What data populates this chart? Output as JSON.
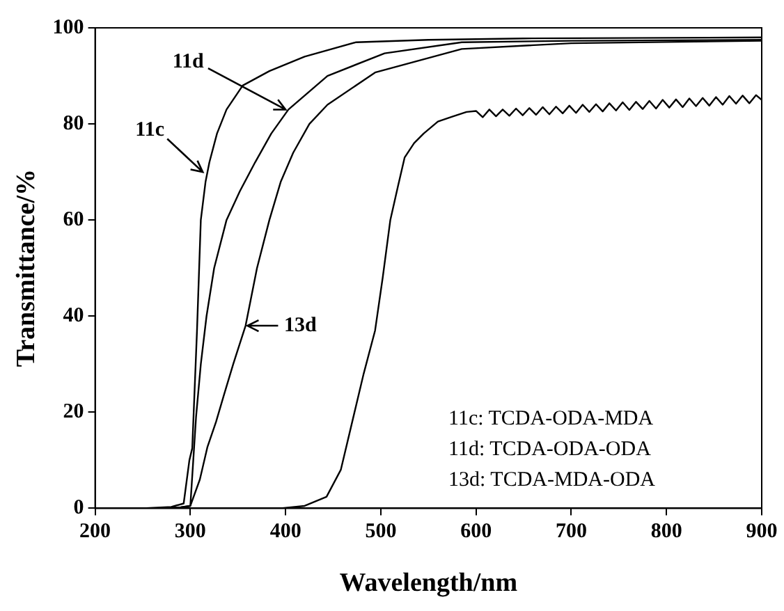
{
  "chart_data": {
    "type": "line",
    "xlabel": "Wavelength/nm",
    "ylabel": "Transmittance/%",
    "xlim": [
      200,
      900
    ],
    "ylim": [
      0,
      100
    ],
    "xticks": [
      200,
      300,
      400,
      500,
      600,
      700,
      800,
      900
    ],
    "yticks": [
      0,
      20,
      40,
      60,
      80,
      100
    ],
    "grid": false,
    "legend": false,
    "marker": "none",
    "line_style": "solid",
    "series": [
      {
        "color": "#000000",
        "x": [
          200,
          250,
          280,
          293,
          299,
          302,
          307,
          311,
          316,
          320,
          328,
          338,
          355,
          383,
          420,
          474,
          550,
          650,
          900
        ],
        "values": [
          0,
          0,
          0.3,
          1,
          10,
          12.5,
          37,
          60,
          68,
          72,
          78,
          83,
          88,
          91,
          94,
          97,
          97.5,
          97.8,
          98
        ]
      },
      {
        "color": "#000000",
        "x": [
          200,
          260,
          290,
          300,
          306,
          311,
          317,
          325,
          338,
          352,
          368,
          385,
          403,
          444,
          504,
          585,
          700,
          900
        ],
        "values": [
          0,
          0,
          0.2,
          0.5,
          19,
          30,
          40,
          50,
          60,
          66,
          72,
          78,
          83,
          90,
          94.7,
          97,
          97.3,
          97.5
        ]
      },
      {
        "color": "#000000",
        "x": [
          200,
          260,
          290,
          300,
          310,
          318,
          327,
          335,
          345,
          358,
          370,
          383,
          395,
          408,
          425,
          444,
          494,
          585,
          700,
          900
        ],
        "values": [
          0,
          0,
          0.2,
          0.5,
          6,
          12.8,
          18,
          23.4,
          30,
          38,
          50,
          60,
          68,
          74,
          80,
          84,
          90.7,
          95.6,
          96.8,
          97.3
        ]
      },
      {
        "color": "#000000",
        "x": [
          200,
          300,
          395,
          420,
          443,
          458,
          470,
          482,
          494,
          502,
          510,
          518,
          525,
          535,
          545,
          560,
          575,
          590,
          600,
          607,
          614,
          621,
          628,
          635,
          642,
          649,
          656,
          663,
          670,
          677,
          684,
          691,
          698,
          705,
          712,
          719,
          726,
          733,
          740,
          747,
          754,
          761,
          768,
          775,
          782,
          789,
          796,
          803,
          810,
          817,
          824,
          831,
          838,
          845,
          852,
          859,
          866,
          873,
          880,
          887,
          894,
          900
        ],
        "values": [
          0,
          0,
          0,
          0.5,
          2.4,
          8,
          18,
          28,
          37,
          48,
          60,
          67,
          73,
          76,
          78,
          80.5,
          81.5,
          82.5,
          82.7,
          81.4,
          83.0,
          81.6,
          83.0,
          81.7,
          83.2,
          81.8,
          83.3,
          81.9,
          83.5,
          82.0,
          83.6,
          82.2,
          83.8,
          82.3,
          84.0,
          82.5,
          84.1,
          82.6,
          84.3,
          82.8,
          84.5,
          82.9,
          84.6,
          83.1,
          84.8,
          83.2,
          85.0,
          83.4,
          85.1,
          83.5,
          85.3,
          83.7,
          85.4,
          83.8,
          85.6,
          84.0,
          85.8,
          84.2,
          85.9,
          84.3,
          86.0,
          85.0
        ]
      }
    ],
    "annotations": [
      {
        "text": "11c",
        "x": 313,
        "y": 70
      },
      {
        "text": "11d",
        "x": 400,
        "y": 83
      },
      {
        "text": "13d",
        "x": 360,
        "y": 38
      },
      "11c: TCDA-ODA-MDA",
      "11d: TCDA-ODA-ODA",
      "13d: TCDA-MDA-ODA"
    ]
  }
}
